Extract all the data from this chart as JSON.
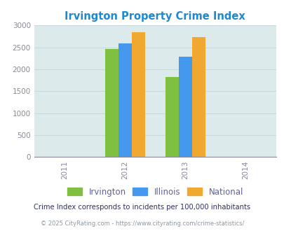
{
  "title": "Irvington Property Crime Index",
  "years": [
    2011,
    2012,
    2013,
    2014
  ],
  "bar_groups": {
    "2012": {
      "Irvington": 2470,
      "Illinois": 2590,
      "National": 2850
    },
    "2013": {
      "Irvington": 1830,
      "Illinois": 2280,
      "National": 2740
    }
  },
  "colors": {
    "Irvington": "#80c040",
    "Illinois": "#4499ee",
    "National": "#f0a830"
  },
  "legend_text_colors": {
    "Irvington": "#6060a0",
    "Illinois": "#6060a0",
    "National": "#6060a0"
  },
  "ylim": [
    0,
    3000
  ],
  "yticks": [
    0,
    500,
    1000,
    1500,
    2000,
    2500,
    3000
  ],
  "xlim": [
    2010.5,
    2014.5
  ],
  "bar_width": 0.22,
  "plot_bg_color": "#ddeaec",
  "fig_bg_color": "#ffffff",
  "legend_labels": [
    "Irvington",
    "Illinois",
    "National"
  ],
  "footnote1": "Crime Index corresponds to incidents per 100,000 inhabitants",
  "footnote2": "© 2025 CityRating.com - https://www.cityrating.com/crime-statistics/",
  "title_color": "#2288cc",
  "footnote1_color": "#303060",
  "footnote2_color": "#8899aa",
  "grid_color": "#c8d8dc",
  "tick_color": "#888899",
  "ytick_fontsize": 7.5,
  "xtick_fontsize": 7.5
}
